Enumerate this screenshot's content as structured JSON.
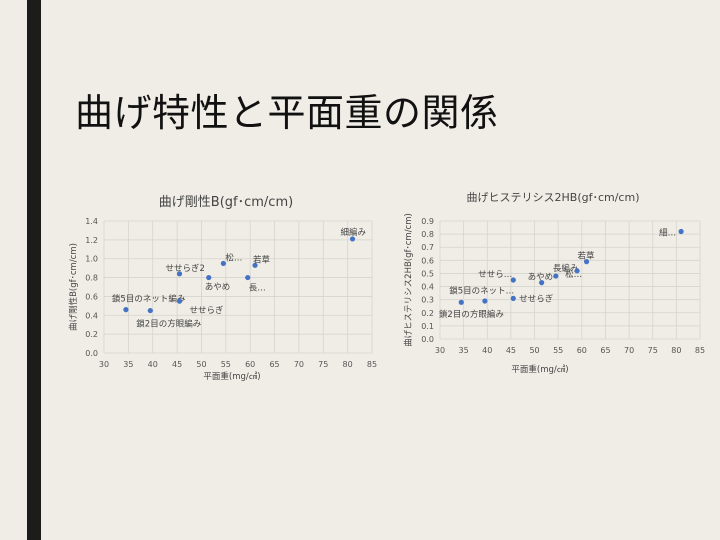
{
  "slide": {
    "title": "曲げ特性と平面重の関係"
  },
  "chart_data": [
    {
      "type": "scatter",
      "title": "曲げ剛性B(gf･cm/cm)",
      "xlabel": "平面重(mg/㎠)",
      "ylabel": "曲げ剛性B(gf･cm/cm)",
      "xlim": [
        30,
        85
      ],
      "ylim": [
        0,
        1.4
      ],
      "xticks": [
        30,
        35,
        40,
        45,
        50,
        55,
        60,
        65,
        70,
        75,
        80,
        85
      ],
      "yticks": [
        0.0,
        0.2,
        0.4,
        0.6,
        0.8,
        1.0,
        1.2,
        1.4
      ],
      "xtick_labels": [
        "30",
        "35",
        "40",
        "45",
        "50",
        "55",
        "60",
        "65",
        "70",
        "75",
        "80",
        "85"
      ],
      "ytick_labels": [
        "0.0",
        "0.2",
        "0.4",
        "0.6",
        "0.8",
        "1.0",
        "1.2",
        "1.4"
      ],
      "grid": true,
      "marker_color": "#4472c4",
      "points": [
        {
          "x": 34.5,
          "y": 0.46,
          "label": "鎖5目のネット編み"
        },
        {
          "x": 39.5,
          "y": 0.45,
          "label": "鎖2目の方眼編み"
        },
        {
          "x": 45.5,
          "y": 0.84,
          "label": "せせらぎ2"
        },
        {
          "x": 45.5,
          "y": 0.55,
          "label": "せせらぎ"
        },
        {
          "x": 51.5,
          "y": 0.8,
          "label": "あやめ"
        },
        {
          "x": 54.5,
          "y": 0.95,
          "label": "松…"
        },
        {
          "x": 59.5,
          "y": 0.8,
          "label": "長…"
        },
        {
          "x": 61.0,
          "y": 0.93,
          "label": "若草"
        },
        {
          "x": 81.0,
          "y": 1.21,
          "label": "細編み"
        }
      ]
    },
    {
      "type": "scatter",
      "title": "曲げヒステリシス2HB(gf･cm/cm)",
      "xlabel": "平面重(mg/㎠)",
      "ylabel": "曲げヒステリシス2HB(gf･cm/cm)",
      "xlim": [
        30,
        85
      ],
      "ylim": [
        0,
        0.9
      ],
      "xticks": [
        30,
        35,
        40,
        45,
        50,
        55,
        60,
        65,
        70,
        75,
        80,
        85
      ],
      "yticks": [
        0,
        0.1,
        0.2,
        0.3,
        0.4,
        0.5,
        0.6,
        0.7,
        0.8,
        0.9
      ],
      "xtick_labels": [
        "30",
        "35",
        "40",
        "45",
        "50",
        "55",
        "60",
        "65",
        "70",
        "75",
        "80",
        "85"
      ],
      "ytick_labels": [
        "0.0",
        "0.1",
        "0.2",
        "0.3",
        "0.4",
        "0.5",
        "0.6",
        "0.7",
        "0.8",
        "0.9"
      ],
      "grid": true,
      "marker_color": "#4472c4",
      "points": [
        {
          "x": 34.5,
          "y": 0.28,
          "label": "鎖5目のネット…"
        },
        {
          "x": 39.5,
          "y": 0.29,
          "label": "鎖2目の方眼編み"
        },
        {
          "x": 45.5,
          "y": 0.45,
          "label": "せせら…"
        },
        {
          "x": 45.5,
          "y": 0.31,
          "label": "せせらぎ"
        },
        {
          "x": 51.5,
          "y": 0.43,
          "label": "あやめ"
        },
        {
          "x": 54.5,
          "y": 0.48,
          "label": "長編み"
        },
        {
          "x": 59.0,
          "y": 0.52,
          "label": "松…"
        },
        {
          "x": 61.0,
          "y": 0.59,
          "label": "若草"
        },
        {
          "x": 81.0,
          "y": 0.82,
          "label": "細…"
        }
      ]
    }
  ]
}
